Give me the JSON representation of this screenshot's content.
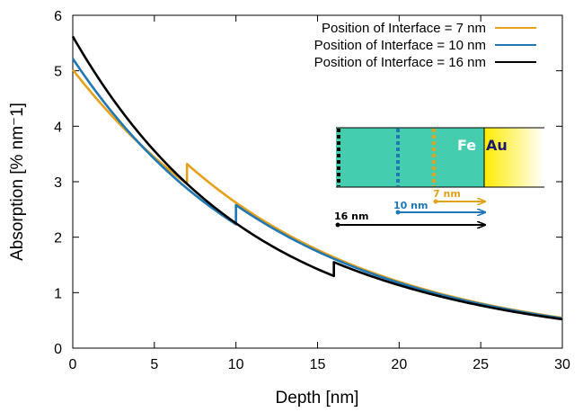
{
  "chart_data": {
    "type": "line",
    "xlabel": "Depth [nm]",
    "ylabel": "Absorption [% nm⁻1]",
    "xlim": [
      0,
      30
    ],
    "ylim": [
      0,
      6
    ],
    "xticks": [
      "0",
      "5",
      "10",
      "15",
      "20",
      "25",
      "30"
    ],
    "yticks": [
      "0",
      "1",
      "2",
      "3",
      "4",
      "5",
      "6"
    ],
    "grid": false,
    "legend_position": "top-right",
    "series": [
      {
        "name": "Position of Interface =   7 nm",
        "color": "#e5a11c",
        "interface": 7,
        "segments": [
          {
            "x0": 0,
            "x1": 7,
            "y0": 5.02,
            "decay": 0.0755
          },
          {
            "x0": 7,
            "x1": 30,
            "y0": 3.32,
            "decay": 0.0785
          }
        ]
      },
      {
        "name": "Position of Interface = 10 nm",
        "color": "#1f78b4",
        "interface": 10,
        "segments": [
          {
            "x0": 0,
            "x1": 10,
            "y0": 5.22,
            "decay": 0.085
          },
          {
            "x0": 10,
            "x1": 30,
            "y0": 2.58,
            "decay": 0.0785
          }
        ]
      },
      {
        "name": "Position of Interface = 16 nm",
        "color": "#000000",
        "interface": 16,
        "segments": [
          {
            "x0": 0,
            "x1": 16,
            "y0": 5.62,
            "decay": 0.0915
          },
          {
            "x0": 16,
            "x1": 30,
            "y0": 1.55,
            "decay": 0.078
          }
        ]
      }
    ]
  },
  "inset": {
    "fe_label": "Fe",
    "au_label": "Au",
    "fe_color": "#45cdb0",
    "au_gradient_start": "#ffeb00",
    "au_gradient_end": "#ffffff",
    "arrows": [
      {
        "label": "7 nm",
        "color": "#e5a11c"
      },
      {
        "label": "10 nm",
        "color": "#1f78b4"
      },
      {
        "label": "16 nm",
        "color": "#000000"
      }
    ]
  }
}
